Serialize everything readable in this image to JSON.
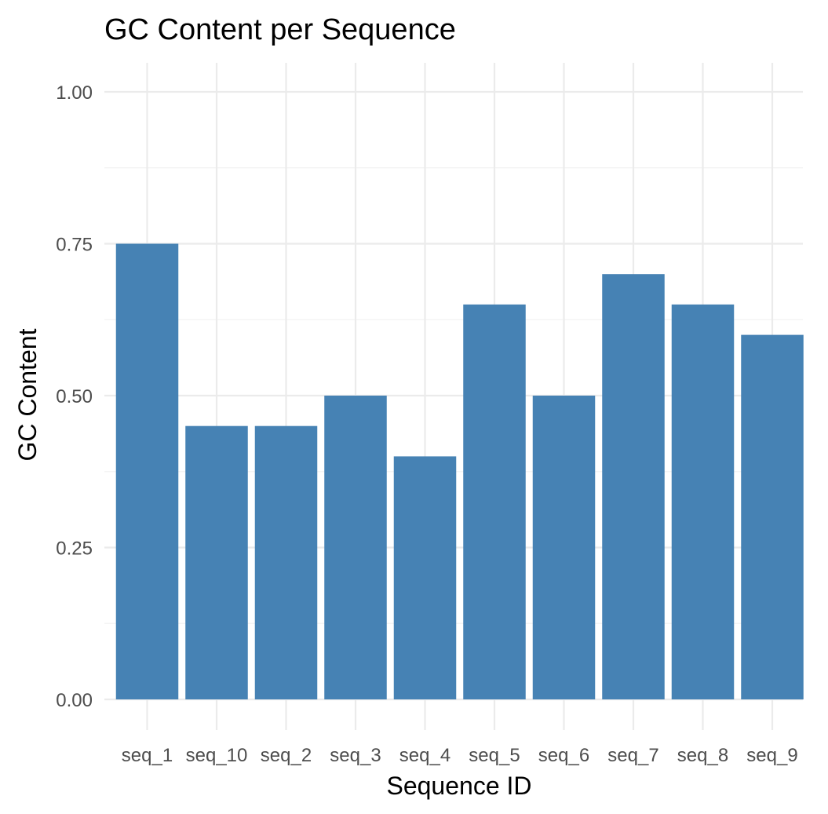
{
  "chart_data": {
    "type": "bar",
    "title": "GC Content per Sequence",
    "xlabel": "Sequence ID",
    "ylabel": "GC Content",
    "categories": [
      "seq_1",
      "seq_10",
      "seq_2",
      "seq_3",
      "seq_4",
      "seq_5",
      "seq_6",
      "seq_7",
      "seq_8",
      "seq_9"
    ],
    "values": [
      0.75,
      0.45,
      0.45,
      0.5,
      0.4,
      0.65,
      0.5,
      0.7,
      0.65,
      0.6
    ],
    "ylim": [
      0,
      1
    ],
    "y_ticks": [
      "0.00",
      "0.25",
      "0.50",
      "0.75",
      "1.00"
    ],
    "bar_color": "#4682B4",
    "grid": true,
    "legend": "none"
  }
}
